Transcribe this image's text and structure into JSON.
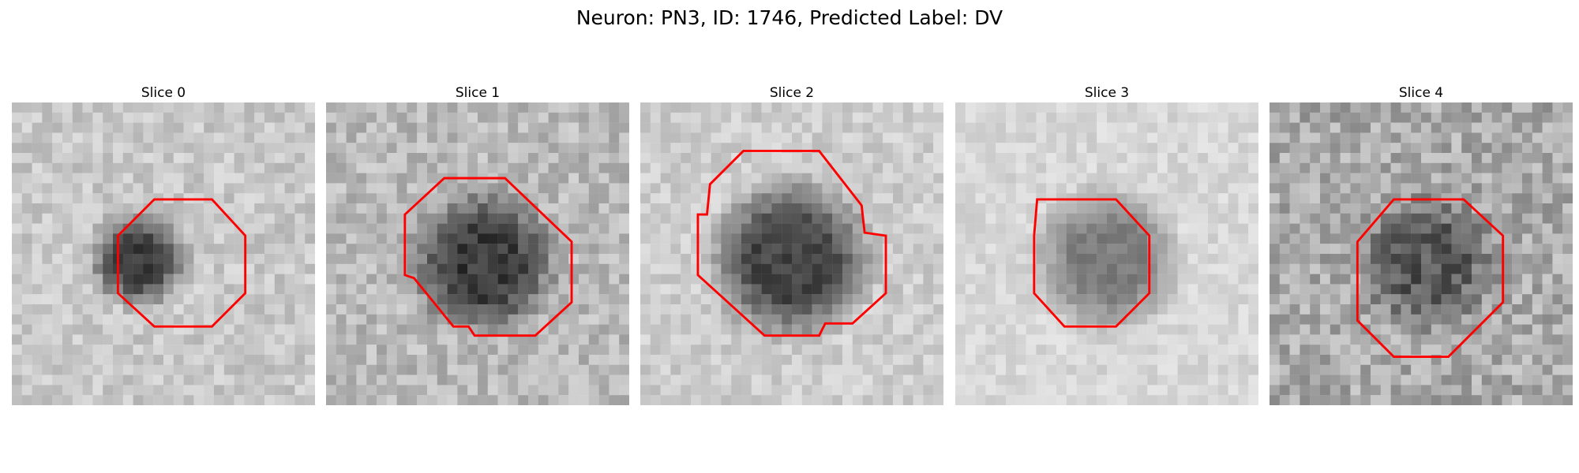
{
  "figure": {
    "title": "Neuron: PN3, ID: 1746, Predicted Label: DV"
  },
  "contour_color": "#ff0000",
  "panels": [
    {
      "title": "Slice 0",
      "base": 200,
      "blob_dark": 135,
      "blob_cx": 0.42,
      "blob_cy": 0.52,
      "blob_r": 0.18,
      "noise": 45,
      "seed": 11,
      "contour": [
        [
          0.47,
          0.32
        ],
        [
          0.66,
          0.32
        ],
        [
          0.77,
          0.44
        ],
        [
          0.77,
          0.63
        ],
        [
          0.66,
          0.74
        ],
        [
          0.47,
          0.74
        ],
        [
          0.35,
          0.63
        ],
        [
          0.35,
          0.44
        ]
      ]
    },
    {
      "title": "Slice 1",
      "base": 185,
      "blob_dark": 125,
      "blob_cx": 0.52,
      "blob_cy": 0.53,
      "blob_r": 0.27,
      "noise": 55,
      "seed": 23,
      "contour": [
        [
          0.39,
          0.25
        ],
        [
          0.59,
          0.25
        ],
        [
          0.81,
          0.46
        ],
        [
          0.81,
          0.66
        ],
        [
          0.69,
          0.77
        ],
        [
          0.49,
          0.77
        ],
        [
          0.47,
          0.74
        ],
        [
          0.42,
          0.74
        ],
        [
          0.29,
          0.58
        ],
        [
          0.26,
          0.57
        ],
        [
          0.26,
          0.37
        ]
      ]
    },
    {
      "title": "Slice 2",
      "base": 205,
      "blob_dark": 135,
      "blob_cx": 0.5,
      "blob_cy": 0.52,
      "blob_r": 0.3,
      "noise": 40,
      "seed": 37,
      "contour": [
        [
          0.34,
          0.16
        ],
        [
          0.59,
          0.16
        ],
        [
          0.73,
          0.34
        ],
        [
          0.74,
          0.43
        ],
        [
          0.81,
          0.44
        ],
        [
          0.81,
          0.63
        ],
        [
          0.7,
          0.73
        ],
        [
          0.61,
          0.73
        ],
        [
          0.59,
          0.77
        ],
        [
          0.41,
          0.77
        ],
        [
          0.19,
          0.57
        ],
        [
          0.19,
          0.37
        ],
        [
          0.22,
          0.37
        ],
        [
          0.23,
          0.27
        ]
      ]
    },
    {
      "title": "Slice 3",
      "base": 215,
      "blob_dark": 90,
      "blob_cx": 0.5,
      "blob_cy": 0.52,
      "blob_r": 0.27,
      "noise": 30,
      "seed": 51,
      "contour": [
        [
          0.27,
          0.32
        ],
        [
          0.53,
          0.32
        ],
        [
          0.64,
          0.44
        ],
        [
          0.64,
          0.63
        ],
        [
          0.53,
          0.74
        ],
        [
          0.36,
          0.74
        ],
        [
          0.26,
          0.63
        ],
        [
          0.26,
          0.44
        ]
      ]
    },
    {
      "title": "Slice 4",
      "base": 170,
      "blob_dark": 80,
      "blob_cx": 0.52,
      "blob_cy": 0.53,
      "blob_r": 0.26,
      "noise": 70,
      "seed": 67,
      "contour": [
        [
          0.41,
          0.32
        ],
        [
          0.64,
          0.32
        ],
        [
          0.77,
          0.44
        ],
        [
          0.77,
          0.66
        ],
        [
          0.59,
          0.84
        ],
        [
          0.41,
          0.84
        ],
        [
          0.29,
          0.72
        ],
        [
          0.29,
          0.46
        ]
      ]
    }
  ]
}
